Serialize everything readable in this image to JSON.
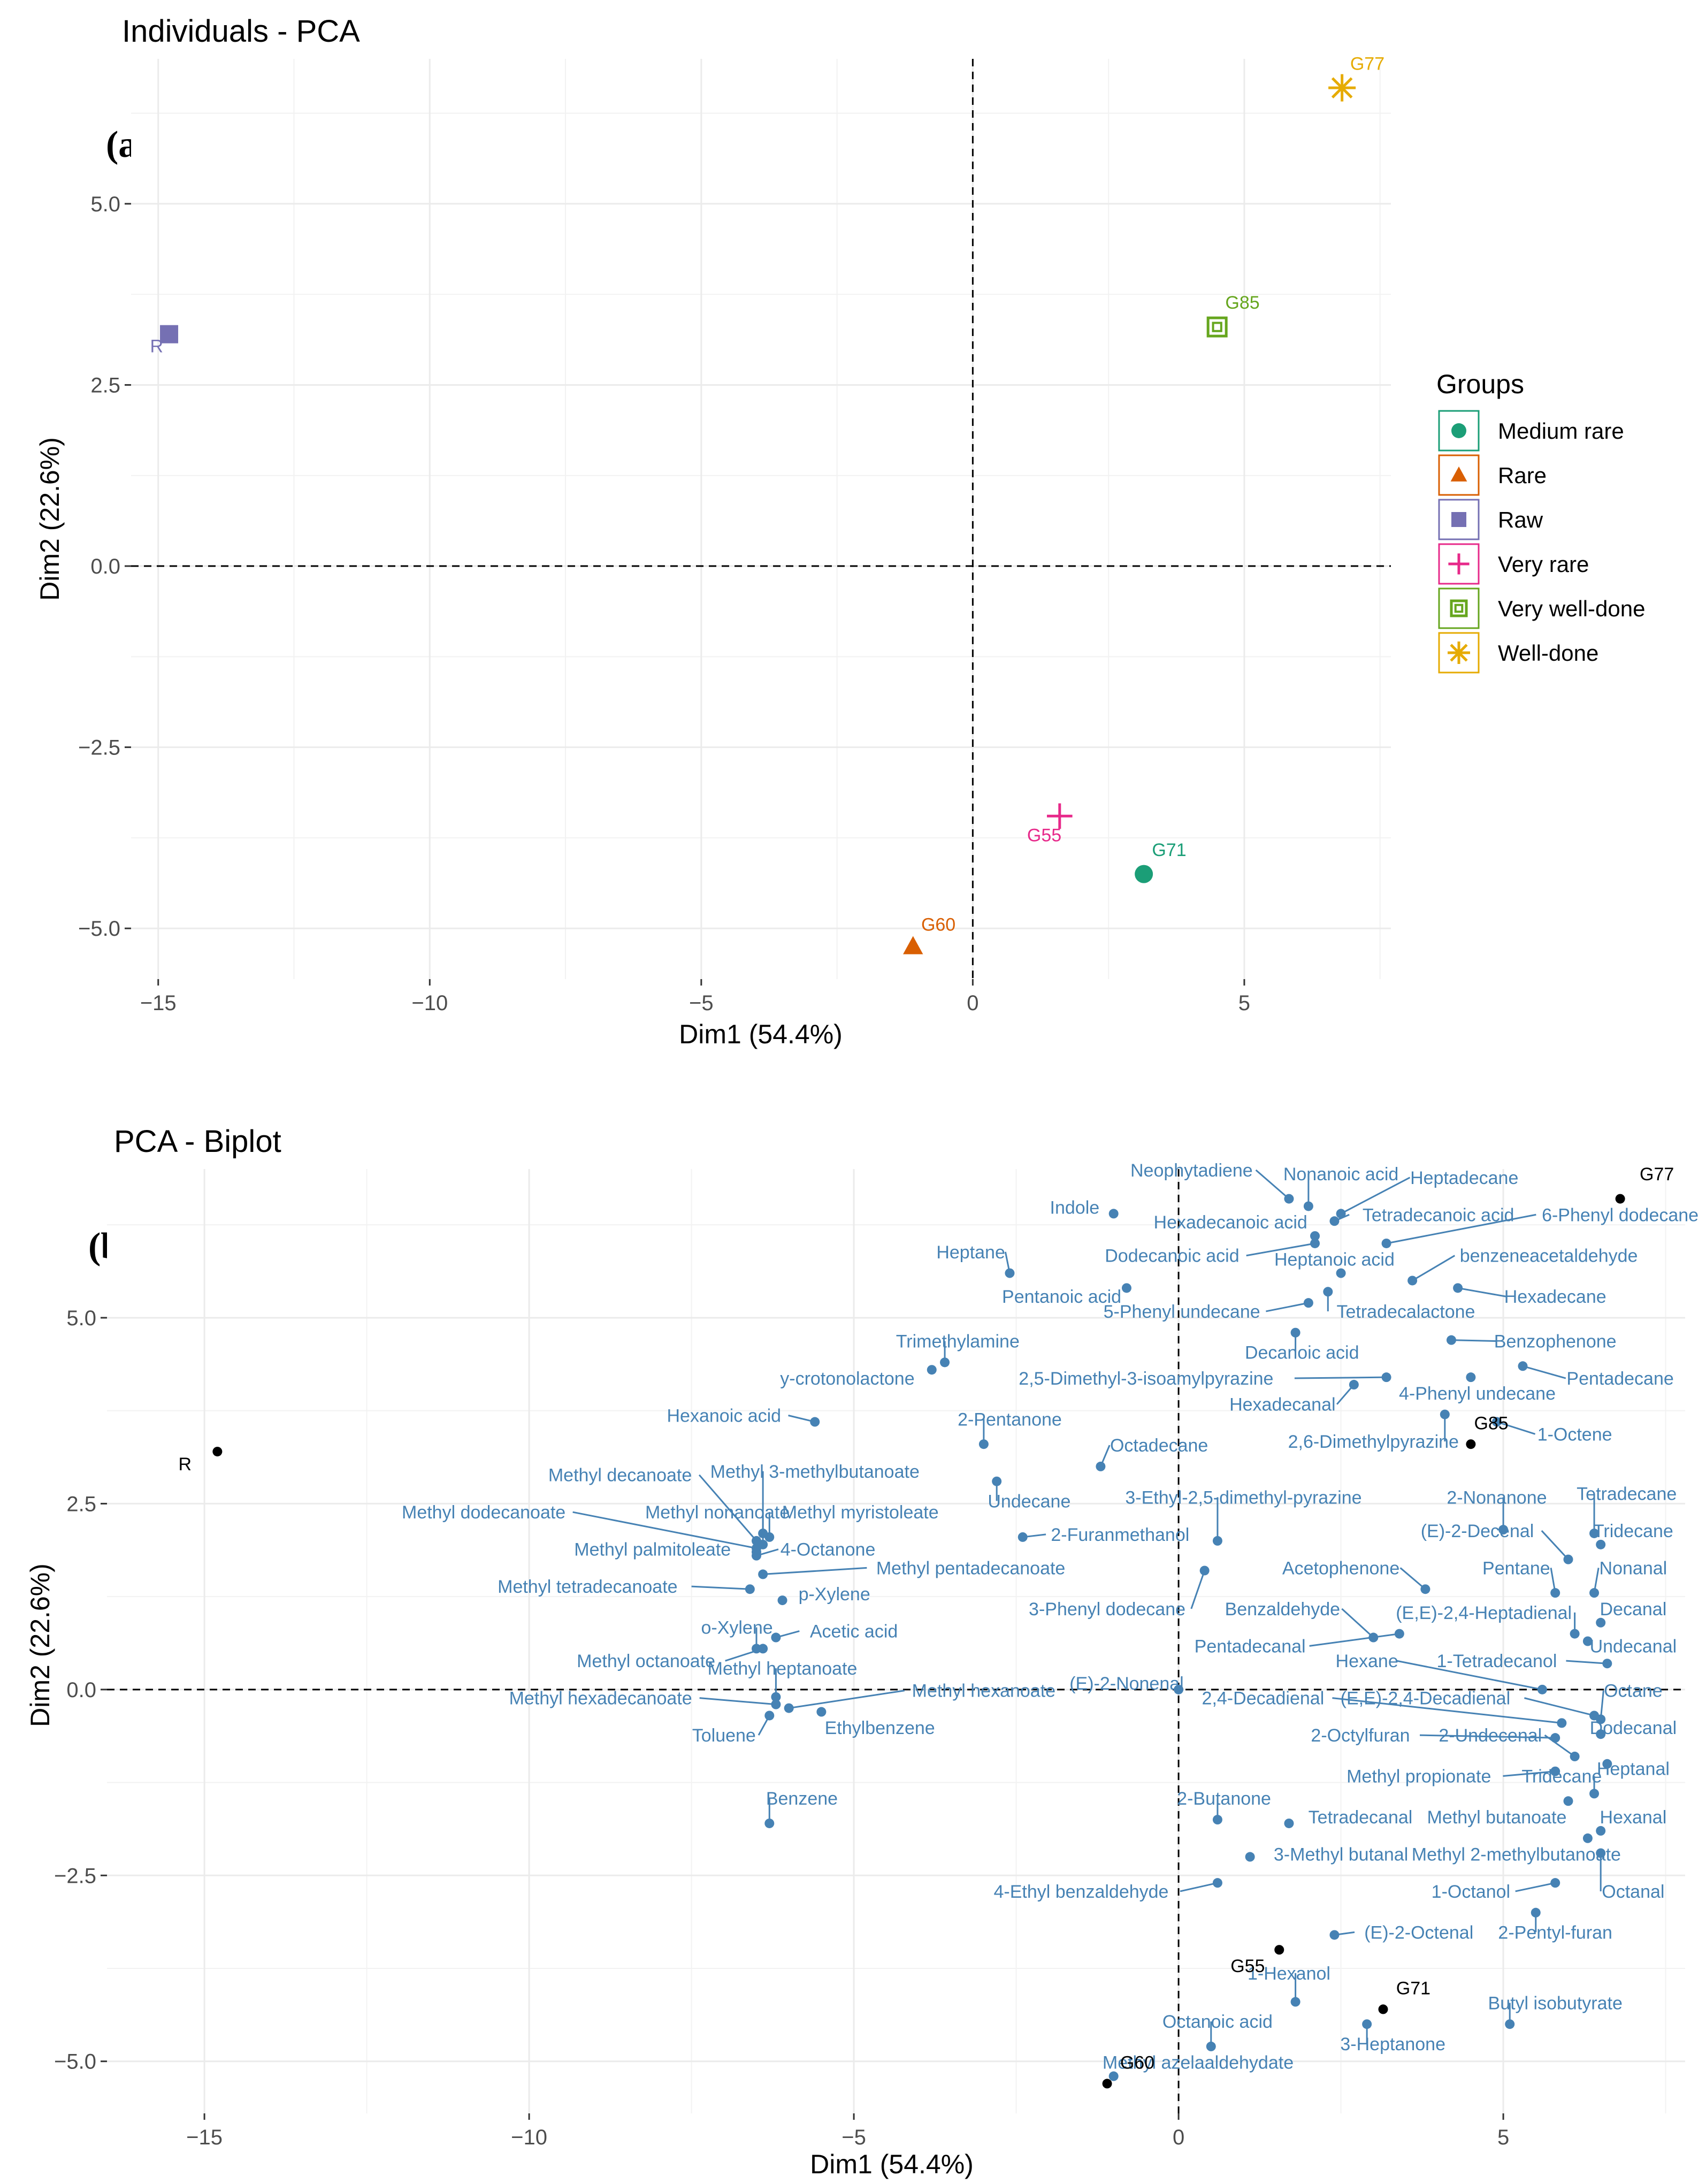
{
  "chart_data": [
    {
      "type": "scatter",
      "title": "Individuals - PCA",
      "panel_label": "(a)",
      "xlabel": "Dim1 (54.4%)",
      "ylabel": "Dim2 (22.6%)",
      "xlim": [
        -15.5,
        7.7
      ],
      "ylim": [
        -5.7,
        7.0
      ],
      "xticks": [
        -15,
        -10,
        -5,
        0,
        5
      ],
      "yticks": [
        -5.0,
        -2.5,
        0.0,
        2.5,
        5.0
      ],
      "xtick_labels": [
        "−15",
        "−10",
        "−5",
        "0",
        "5"
      ],
      "ytick_labels": [
        "−5.0",
        "−2.5",
        "0.0",
        "2.5",
        "5.0"
      ],
      "legend": {
        "title": "Groups",
        "position": "right",
        "items": [
          {
            "label": "Medium rare",
            "color": "#1b9e77",
            "shape": "circle"
          },
          {
            "label": "Rare",
            "color": "#d95f02",
            "shape": "triangle"
          },
          {
            "label": "Raw",
            "color": "#7570b3",
            "shape": "square"
          },
          {
            "label": "Very rare",
            "color": "#e7298a",
            "shape": "plus"
          },
          {
            "label": "Very well-done",
            "color": "#66a61e",
            "shape": "boxed-square"
          },
          {
            "label": "Well-done",
            "color": "#e6ab02",
            "shape": "star"
          }
        ]
      },
      "points": [
        {
          "label": "G77",
          "x": 6.8,
          "y": 6.6,
          "group": "Well-done",
          "label_dx": 0.15,
          "label_dy": 0.25
        },
        {
          "label": "G85",
          "x": 4.5,
          "y": 3.3,
          "group": "Very well-done",
          "label_dx": 0.15,
          "label_dy": 0.25
        },
        {
          "label": "R",
          "x": -14.8,
          "y": 3.2,
          "group": "Raw",
          "label_dx": -0.35,
          "label_dy": -0.25
        },
        {
          "label": "G55",
          "x": 1.6,
          "y": -3.45,
          "group": "Very rare",
          "label_dx": -0.6,
          "label_dy": -0.35
        },
        {
          "label": "G71",
          "x": 3.15,
          "y": -4.25,
          "group": "Medium rare",
          "label_dx": 0.15,
          "label_dy": 0.25
        },
        {
          "label": "G60",
          "x": -1.1,
          "y": -5.25,
          "group": "Rare",
          "label_dx": 0.15,
          "label_dy": 0.22
        }
      ]
    },
    {
      "type": "biplot",
      "title": "PCA - Biplot",
      "panel_label": "(b)",
      "xlabel": "Dim1 (54.4%)",
      "ylabel": "Dim2 (22.6%)",
      "xlim": [
        -16.5,
        7.8
      ],
      "ylim": [
        -5.7,
        7.0
      ],
      "xticks": [
        -15,
        -10,
        -5,
        0,
        5
      ],
      "yticks": [
        -5.0,
        -2.5,
        0.0,
        2.5,
        5.0
      ],
      "xtick_labels": [
        "−15",
        "−10",
        "−5",
        "0",
        "5"
      ],
      "ytick_labels": [
        "−5.0",
        "−2.5",
        "0.0",
        "2.5",
        "5.0"
      ],
      "individuals": [
        {
          "label": "G77",
          "x": 6.8,
          "y": 6.6,
          "lx": 7.1,
          "ly": 6.85
        },
        {
          "label": "G85",
          "x": 4.5,
          "y": 3.3,
          "lx": 4.55,
          "ly": 3.5
        },
        {
          "label": "R",
          "x": -14.8,
          "y": 3.2,
          "lx": -15.4,
          "ly": 2.95
        },
        {
          "label": "G55",
          "x": 1.55,
          "y": -3.5,
          "lx": 0.8,
          "ly": -3.8
        },
        {
          "label": "G71",
          "x": 3.15,
          "y": -4.3,
          "lx": 3.35,
          "ly": -4.1
        },
        {
          "label": "G60",
          "x": -1.1,
          "y": -5.3,
          "lx": -0.9,
          "ly": -5.1
        }
      ],
      "variables": [
        {
          "label": "Neophytadiene",
          "x": 1.7,
          "y": 6.6,
          "lx": 0.2,
          "ly": 6.9
        },
        {
          "label": "Nonanoic acid",
          "x": 2.0,
          "y": 6.5,
          "lx": 2.5,
          "ly": 6.85
        },
        {
          "label": "Heptadecane",
          "x": 2.5,
          "y": 6.4,
          "lx": 4.4,
          "ly": 6.8
        },
        {
          "label": "Indole",
          "x": -1.0,
          "y": 6.4,
          "lx": -1.6,
          "ly": 6.4
        },
        {
          "label": "Hexadecanoic acid",
          "x": 2.1,
          "y": 6.1,
          "lx": 0.8,
          "ly": 6.2
        },
        {
          "label": "Tetradecanoic acid",
          "x": 2.4,
          "y": 6.3,
          "lx": 4.0,
          "ly": 6.3
        },
        {
          "label": "6-Phenyl dodecane",
          "x": 3.2,
          "y": 6.0,
          "lx": 6.8,
          "ly": 6.3
        },
        {
          "label": "Heptane",
          "x": -2.6,
          "y": 5.6,
          "lx": -3.2,
          "ly": 5.8
        },
        {
          "label": "Dodecanoic acid",
          "x": 2.1,
          "y": 6.0,
          "lx": -0.1,
          "ly": 5.75
        },
        {
          "label": "Heptanoic acid",
          "x": 2.5,
          "y": 5.6,
          "lx": 2.4,
          "ly": 5.7
        },
        {
          "label": "benzeneacetaldehyde",
          "x": 3.6,
          "y": 5.5,
          "lx": 5.7,
          "ly": 5.75
        },
        {
          "label": "Pentanoic acid",
          "x": -0.8,
          "y": 5.4,
          "lx": -1.8,
          "ly": 5.2
        },
        {
          "label": "Hexadecane",
          "x": 4.3,
          "y": 5.4,
          "lx": 5.8,
          "ly": 5.2
        },
        {
          "label": "5-Phenyl undecane",
          "x": 2.0,
          "y": 5.2,
          "lx": 0.05,
          "ly": 5.0
        },
        {
          "label": "Tetradecalactone",
          "x": 2.3,
          "y": 5.35,
          "lx": 3.5,
          "ly": 5.0
        },
        {
          "label": "Trimethylamine",
          "x": -3.6,
          "y": 4.4,
          "lx": -3.4,
          "ly": 4.6
        },
        {
          "label": "Benzophenone",
          "x": 4.2,
          "y": 4.7,
          "lx": 5.8,
          "ly": 4.6
        },
        {
          "label": "Decanoic acid",
          "x": 1.8,
          "y": 4.8,
          "lx": 1.9,
          "ly": 4.45
        },
        {
          "label": "y-crotonolactone",
          "x": -3.8,
          "y": 4.3,
          "lx": -5.1,
          "ly": 4.1
        },
        {
          "label": "2,5-Dimethyl-3-isoamylpyrazine",
          "x": 3.2,
          "y": 4.2,
          "lx": -0.5,
          "ly": 4.1
        },
        {
          "label": "Pentadecane",
          "x": 5.3,
          "y": 4.35,
          "lx": 6.8,
          "ly": 4.1
        },
        {
          "label": "Hexadecanal",
          "x": 2.7,
          "y": 4.1,
          "lx": 1.6,
          "ly": 3.75
        },
        {
          "label": "4-Phenyl undecane",
          "x": 4.5,
          "y": 4.2,
          "lx": 4.6,
          "ly": 3.9
        },
        {
          "label": "Hexanoic acid",
          "x": -5.6,
          "y": 3.6,
          "lx": -7.0,
          "ly": 3.6
        },
        {
          "label": "2-Pentanone",
          "x": -3.0,
          "y": 3.3,
          "lx": -2.6,
          "ly": 3.55
        },
        {
          "label": "1-Octene",
          "x": 4.9,
          "y": 3.6,
          "lx": 6.1,
          "ly": 3.35
        },
        {
          "label": "2,6-Dimethylpyrazine",
          "x": 4.1,
          "y": 3.7,
          "lx": 3.0,
          "ly": 3.25
        },
        {
          "label": "Octadecane",
          "x": -1.2,
          "y": 3.0,
          "lx": -0.3,
          "ly": 3.2
        },
        {
          "label": "Methyl decanoate",
          "x": -6.5,
          "y": 2.0,
          "lx": -8.6,
          "ly": 2.8
        },
        {
          "label": "Methyl 3-methylbutanoate",
          "x": -6.4,
          "y": 2.1,
          "lx": -5.6,
          "ly": 2.85
        },
        {
          "label": "Undecane",
          "x": -2.8,
          "y": 2.8,
          "lx": -2.3,
          "ly": 2.45
        },
        {
          "label": "3-Ethyl-2,5-dimethyl-pyrazine",
          "x": 0.6,
          "y": 2.0,
          "lx": 1.0,
          "ly": 2.5
        },
        {
          "label": "2-Nonanone",
          "x": 5.0,
          "y": 2.15,
          "lx": 4.9,
          "ly": 2.5
        },
        {
          "label": "Tetradecane",
          "x": 6.4,
          "y": 2.1,
          "lx": 6.9,
          "ly": 2.55
        },
        {
          "label": "Methyl dodecanoate",
          "x": -6.5,
          "y": 1.9,
          "lx": -10.7,
          "ly": 2.3
        },
        {
          "label": "Methyl nonanoate",
          "x": -6.4,
          "y": 1.95,
          "lx": -7.1,
          "ly": 2.3
        },
        {
          "label": "Methyl myristoleate",
          "x": -6.3,
          "y": 2.05,
          "lx": -4.9,
          "ly": 2.3
        },
        {
          "label": "2-Furanmethanol",
          "x": -2.4,
          "y": 2.05,
          "lx": -0.9,
          "ly": 2.0
        },
        {
          "label": "Methyl palmitoleate",
          "x": -6.5,
          "y": 1.85,
          "lx": -8.1,
          "ly": 1.8
        },
        {
          "label": "4-Octanone",
          "x": -6.5,
          "y": 1.8,
          "lx": -5.4,
          "ly": 1.8
        },
        {
          "label": "(E)-2-Decenal",
          "x": 6.0,
          "y": 1.75,
          "lx": 4.6,
          "ly": 2.05
        },
        {
          "label": "Tridecane",
          "x": 6.5,
          "y": 1.95,
          "lx": 7.0,
          "ly": 2.05
        },
        {
          "label": "Methyl pentadecanoate",
          "x": -6.4,
          "y": 1.55,
          "lx": -3.2,
          "ly": 1.55
        },
        {
          "label": "Acetophenone",
          "x": 3.8,
          "y": 1.35,
          "lx": 2.5,
          "ly": 1.55
        },
        {
          "label": "Pentane",
          "x": 5.8,
          "y": 1.3,
          "lx": 5.2,
          "ly": 1.55
        },
        {
          "label": "Nonanal",
          "x": 6.4,
          "y": 1.3,
          "lx": 7.0,
          "ly": 1.55
        },
        {
          "label": "Methyl tetradecanoate",
          "x": -6.6,
          "y": 1.35,
          "lx": -9.1,
          "ly": 1.3
        },
        {
          "label": "p-Xylene",
          "x": -6.1,
          "y": 1.2,
          "lx": -5.3,
          "ly": 1.2
        },
        {
          "label": "3-Phenyl dodecane",
          "x": 0.4,
          "y": 1.6,
          "lx": -1.1,
          "ly": 1.0
        },
        {
          "label": "Benzaldehyde",
          "x": 3.0,
          "y": 0.7,
          "lx": 1.6,
          "ly": 1.0
        },
        {
          "label": "(E,E)-2,4-Heptadienal",
          "x": 6.1,
          "y": 0.75,
          "lx": 4.7,
          "ly": 0.95
        },
        {
          "label": "Decanal",
          "x": 6.5,
          "y": 0.9,
          "lx": 7.0,
          "ly": 1.0
        },
        {
          "label": "o-Xylene",
          "x": -6.5,
          "y": 0.55,
          "lx": -6.8,
          "ly": 0.75
        },
        {
          "label": "Acetic acid",
          "x": -6.2,
          "y": 0.7,
          "lx": -5.0,
          "ly": 0.7
        },
        {
          "label": "Pentadecanal",
          "x": 3.4,
          "y": 0.75,
          "lx": 1.1,
          "ly": 0.5
        },
        {
          "label": "Undecanal",
          "x": 6.3,
          "y": 0.65,
          "lx": 7.0,
          "ly": 0.5
        },
        {
          "label": "Methyl octanoate",
          "x": -6.4,
          "y": 0.55,
          "lx": -8.2,
          "ly": 0.3
        },
        {
          "label": "Methyl heptanoate",
          "x": -6.2,
          "y": -0.1,
          "lx": -6.1,
          "ly": 0.2
        },
        {
          "label": "Hexane",
          "x": 5.6,
          "y": 0.0,
          "lx": 2.9,
          "ly": 0.3
        },
        {
          "label": "1-Tetradecanol",
          "x": 6.6,
          "y": 0.35,
          "lx": 4.9,
          "ly": 0.3
        },
        {
          "label": "(E)-2-Nonenal",
          "x": 0.0,
          "y": 0.0,
          "lx": -0.8,
          "ly": 0.0
        },
        {
          "label": "Methyl hexanoate",
          "x": -6.0,
          "y": -0.25,
          "lx": -3.0,
          "ly": -0.1
        },
        {
          "label": "Octane",
          "x": 6.5,
          "y": -0.4,
          "lx": 7.0,
          "ly": -0.1
        },
        {
          "label": "Methyl hexadecanoate",
          "x": -6.2,
          "y": -0.2,
          "lx": -8.9,
          "ly": -0.2
        },
        {
          "label": "2,4-Decadienal",
          "x": 5.9,
          "y": -0.45,
          "lx": 1.3,
          "ly": -0.2
        },
        {
          "label": "(E,E)-2,4-Decadienal",
          "x": 6.4,
          "y": -0.35,
          "lx": 3.8,
          "ly": -0.2
        },
        {
          "label": "Toluene",
          "x": -6.3,
          "y": -0.35,
          "lx": -7.0,
          "ly": -0.7
        },
        {
          "label": "Ethylbenzene",
          "x": -5.5,
          "y": -0.3,
          "lx": -4.6,
          "ly": -0.6
        },
        {
          "label": "Dodecanal",
          "x": 6.5,
          "y": -0.6,
          "lx": 7.0,
          "ly": -0.6
        },
        {
          "label": "2-Octylfuran",
          "x": 5.8,
          "y": -0.65,
          "lx": 2.8,
          "ly": -0.7
        },
        {
          "label": "2-Undecenal",
          "x": 6.1,
          "y": -0.9,
          "lx": 4.8,
          "ly": -0.7
        },
        {
          "label": "Heptanal",
          "x": 6.6,
          "y": -1.0,
          "lx": 7.0,
          "ly": -1.15
        },
        {
          "label": "Methyl propionate",
          "x": 5.8,
          "y": -1.1,
          "lx": 3.7,
          "ly": -1.25
        },
        {
          "label": "Tridecane",
          "x": 6.4,
          "y": -1.4,
          "lx": 5.9,
          "ly": -1.25
        },
        {
          "label": "Hexanal",
          "x": 6.5,
          "y": -1.9,
          "lx": 7.0,
          "ly": -1.8
        },
        {
          "label": "2-Butanone",
          "x": 0.6,
          "y": -1.75,
          "lx": 0.7,
          "ly": -1.55
        },
        {
          "label": "Tetradecanal",
          "x": 1.7,
          "y": -1.8,
          "lx": 2.8,
          "ly": -1.8
        },
        {
          "label": "Methyl butanoate",
          "x": 6.0,
          "y": -1.5,
          "lx": 4.9,
          "ly": -1.8
        },
        {
          "label": "Benzene",
          "x": -6.3,
          "y": -1.8,
          "lx": -5.8,
          "ly": -1.55
        },
        {
          "label": "Methyl 2-methylbutanoate",
          "x": 6.3,
          "y": -2.0,
          "lx": 5.2,
          "ly": -2.3
        },
        {
          "label": "3-Methyl butanal",
          "x": 1.1,
          "y": -2.25,
          "lx": 2.5,
          "ly": -2.3
        },
        {
          "label": "Octanal",
          "x": 6.5,
          "y": -2.2,
          "lx": 7.0,
          "ly": -2.8
        },
        {
          "label": "4-Ethyl benzaldehyde",
          "x": 0.6,
          "y": -2.6,
          "lx": -1.5,
          "ly": -2.8
        },
        {
          "label": "1-Octanol",
          "x": 5.8,
          "y": -2.6,
          "lx": 4.5,
          "ly": -2.8
        },
        {
          "label": "2-Pentyl-furan",
          "x": 5.5,
          "y": -3.0,
          "lx": 5.8,
          "ly": -3.35
        },
        {
          "label": "(E)-2-Octenal",
          "x": 2.4,
          "y": -3.3,
          "lx": 3.7,
          "ly": -3.35
        },
        {
          "label": "1-Hexanol",
          "x": 1.8,
          "y": -4.2,
          "lx": 1.7,
          "ly": -3.9
        },
        {
          "label": "Butyl isobutyrate",
          "x": 5.1,
          "y": -4.5,
          "lx": 5.8,
          "ly": -4.3
        },
        {
          "label": "Octanoic acid",
          "x": 0.5,
          "y": -4.8,
          "lx": 0.6,
          "ly": -4.55
        },
        {
          "label": "3-Heptanone",
          "x": 2.9,
          "y": -4.5,
          "lx": 3.3,
          "ly": -4.85
        },
        {
          "label": "Methyl azelaaldehydate",
          "x": -1.0,
          "y": -5.2,
          "lx": 0.3,
          "ly": -5.1
        }
      ]
    }
  ]
}
